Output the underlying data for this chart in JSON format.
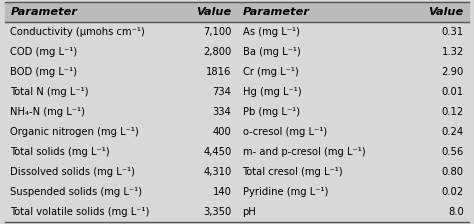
{
  "left_params": [
    "Conductivity (μmohs cm⁻¹)",
    "COD (mg L⁻¹)",
    "BOD (mg L⁻¹)",
    "Total N (mg L⁻¹)",
    "NH₄-N (mg L⁻¹)",
    "Organic nitrogen (mg L⁻¹)",
    "Total solids (mg L⁻¹)",
    "Dissolved solids (mg L⁻¹)",
    "Suspended solids (mg L⁻¹)",
    "Total volatile solids (mg L⁻¹)"
  ],
  "left_values": [
    "7,100",
    "2,800",
    "1816",
    "734",
    "334",
    "400",
    "4,450",
    "4,310",
    "140",
    "3,350"
  ],
  "right_params": [
    "As (mg L⁻¹)",
    "Ba (mg L⁻¹)",
    "Cr (mg L⁻¹)",
    "Hg (mg L⁻¹)",
    "Pb (mg L⁻¹)",
    "o-cresol (mg L⁻¹)",
    "m- and p-cresol (mg L⁻¹)",
    "Total cresol (mg L⁻¹)",
    "Pyridine (mg L⁻¹)",
    "pH"
  ],
  "right_values": [
    "0.31",
    "1.32",
    "2.90",
    "0.01",
    "0.12",
    "0.24",
    "0.56",
    "0.80",
    "0.02",
    "8.0"
  ],
  "col_headers": [
    "Parameter",
    "Value",
    "Parameter",
    "Value"
  ],
  "bg_color": "#d8d8d8",
  "font_size": 7.2,
  "header_font_size": 8.2
}
